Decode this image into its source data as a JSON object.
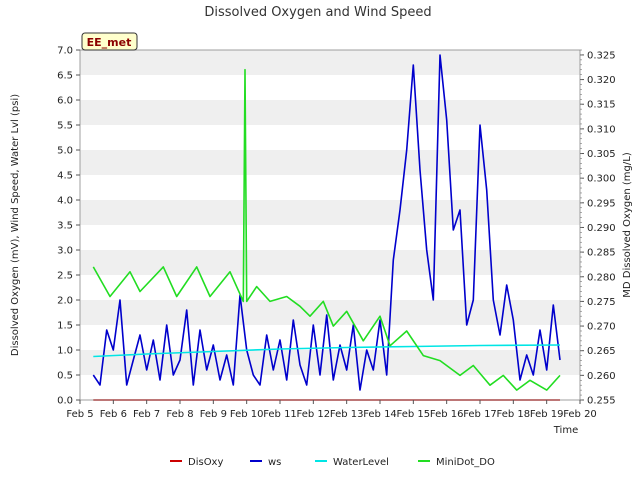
{
  "chart_data": {
    "type": "line",
    "title": "Dissolved Oxygen and Wind Speed",
    "badge": "EE_met",
    "xlabel": "Time",
    "ylabel_left": "Dissolved Oxygen (mV), Wind Speed, Water Lvl (psi)",
    "ylabel_right": "MD Dissolved Oxygen (mg/L)",
    "x_ticks": [
      "Feb 5",
      "Feb 6",
      "Feb 7",
      "Feb 8",
      "Feb 9",
      "Feb 10",
      "Feb 11",
      "Feb 12",
      "Feb 13",
      "Feb 14",
      "Feb 15",
      "Feb 16",
      "Feb 17",
      "Feb 18",
      "Feb 19",
      "Feb 20"
    ],
    "x_range_days": [
      5,
      20
    ],
    "ylim_left": [
      0,
      7.0
    ],
    "y_ticks_left": [
      "0.0",
      "0.5",
      "1.0",
      "1.5",
      "2.0",
      "2.5",
      "3.0",
      "3.5",
      "4.0",
      "4.5",
      "5.0",
      "5.5",
      "6.0",
      "6.5",
      "7.0"
    ],
    "ylim_right": [
      0.255,
      0.326
    ],
    "y_ticks_right": [
      "0.255",
      "0.260",
      "0.265",
      "0.270",
      "0.275",
      "0.280",
      "0.285",
      "0.290",
      "0.295",
      "0.300",
      "0.305",
      "0.310",
      "0.315",
      "0.320",
      "0.325"
    ],
    "grid": "horizontal bands",
    "legend_position": "bottom",
    "series": [
      {
        "name": "DisOxy",
        "color": "#cc0000",
        "axis": "left",
        "x": [
          5.4,
          19.4
        ],
        "y": [
          0.0,
          0.0
        ]
      },
      {
        "name": "ws",
        "color": "#0000cc",
        "axis": "left",
        "x": [
          5.4,
          5.6,
          5.8,
          6.0,
          6.2,
          6.4,
          6.6,
          6.8,
          7.0,
          7.2,
          7.4,
          7.6,
          7.8,
          8.0,
          8.2,
          8.4,
          8.6,
          8.8,
          9.0,
          9.2,
          9.4,
          9.6,
          9.8,
          10.0,
          10.2,
          10.4,
          10.6,
          10.8,
          11.0,
          11.2,
          11.4,
          11.6,
          11.8,
          12.0,
          12.2,
          12.4,
          12.6,
          12.8,
          13.0,
          13.2,
          13.4,
          13.6,
          13.8,
          14.0,
          14.2,
          14.4,
          14.6,
          14.8,
          15.0,
          15.2,
          15.4,
          15.6,
          15.8,
          16.0,
          16.2,
          16.4,
          16.6,
          16.8,
          17.0,
          17.2,
          17.4,
          17.6,
          17.8,
          18.0,
          18.2,
          18.4,
          18.6,
          18.8,
          19.0,
          19.2,
          19.4
        ],
        "y": [
          0.5,
          0.3,
          1.4,
          1.0,
          2.0,
          0.3,
          0.8,
          1.3,
          0.6,
          1.2,
          0.4,
          1.5,
          0.5,
          0.8,
          1.8,
          0.3,
          1.4,
          0.6,
          1.1,
          0.4,
          0.9,
          0.3,
          2.1,
          1.0,
          0.5,
          0.3,
          1.3,
          0.6,
          1.2,
          0.4,
          1.6,
          0.7,
          0.3,
          1.5,
          0.5,
          1.7,
          0.4,
          1.1,
          0.6,
          1.5,
          0.2,
          1.0,
          0.6,
          1.6,
          0.5,
          2.8,
          3.8,
          5.0,
          6.7,
          4.6,
          3.0,
          2.0,
          6.9,
          5.6,
          3.4,
          3.8,
          1.5,
          2.0,
          5.5,
          4.2,
          2.0,
          1.3,
          2.3,
          1.6,
          0.4,
          0.9,
          0.5,
          1.4,
          0.6,
          1.9,
          0.8
        ]
      },
      {
        "name": "WaterLevel",
        "color": "#00e5e5",
        "axis": "left",
        "x": [
          5.4,
          7.0,
          9.0,
          11.0,
          13.0,
          15.0,
          17.0,
          19.4
        ],
        "y": [
          0.87,
          0.92,
          0.97,
          1.02,
          1.05,
          1.07,
          1.09,
          1.1
        ]
      },
      {
        "name": "MiniDot_DO",
        "color": "#22dd22",
        "axis": "right",
        "x": [
          5.4,
          5.9,
          6.5,
          6.8,
          7.5,
          7.9,
          8.5,
          8.9,
          9.5,
          9.9,
          9.95,
          10.0,
          10.3,
          10.7,
          11.2,
          11.6,
          11.9,
          12.3,
          12.6,
          13.0,
          13.5,
          14.0,
          14.3,
          14.8,
          15.3,
          15.8,
          16.4,
          16.8,
          17.3,
          17.7,
          18.1,
          18.5,
          19.0,
          19.4
        ],
        "y": [
          0.282,
          0.276,
          0.281,
          0.277,
          0.282,
          0.276,
          0.282,
          0.276,
          0.281,
          0.275,
          0.322,
          0.275,
          0.278,
          0.275,
          0.276,
          0.274,
          0.272,
          0.275,
          0.27,
          0.273,
          0.267,
          0.272,
          0.266,
          0.269,
          0.264,
          0.263,
          0.26,
          0.262,
          0.258,
          0.26,
          0.257,
          0.259,
          0.257,
          0.26
        ]
      }
    ]
  }
}
